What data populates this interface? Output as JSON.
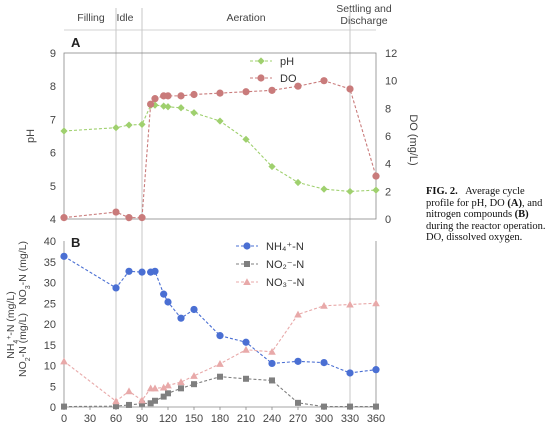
{
  "phases": [
    "Filling",
    "Idle",
    "Aeration",
    "Settling and\nDischarge"
  ],
  "phase_boundaries": [
    60,
    90,
    330
  ],
  "caption": {
    "fig": "FIG. 2.",
    "text1": "Average cycle profile for pH, DO ",
    "a": "(A)",
    "text2": ", and nitrogen compounds ",
    "b": "(B)",
    "text3": " during the reactor operation. DO, dissolved oxygen."
  },
  "colors": {
    "ph": "#9fd06e",
    "do": "#c97b7b",
    "nh4": "#4a6fd3",
    "no2": "#7f7f7f",
    "no3": "#e8a9a9"
  },
  "chart_data": [
    {
      "panel": "A",
      "type": "line",
      "x": [
        0,
        60,
        75,
        90,
        100,
        105,
        115,
        120,
        135,
        150,
        180,
        210,
        240,
        270,
        300,
        330,
        360
      ],
      "xlim": [
        0,
        360
      ],
      "ylim_left": [
        4,
        9
      ],
      "ylim_right": [
        0,
        12
      ],
      "ylabel_left": "pH",
      "ylabel_right": "DO (mg/L)",
      "series": [
        {
          "name": "pH",
          "axis": "left",
          "marker": "diamond",
          "values": [
            6.65,
            6.75,
            6.83,
            6.85,
            7.42,
            7.43,
            7.4,
            7.38,
            7.35,
            7.2,
            6.95,
            6.4,
            5.58,
            5.1,
            4.9,
            4.83,
            4.87
          ]
        },
        {
          "name": "DO",
          "axis": "right",
          "marker": "circle",
          "values": [
            0.1,
            0.5,
            0.1,
            0.1,
            8.3,
            8.7,
            8.9,
            8.9,
            8.9,
            9.0,
            9.1,
            9.2,
            9.3,
            9.6,
            10.0,
            9.4,
            3.1
          ]
        }
      ],
      "yticks_left": [
        "4",
        "5",
        "6",
        "7",
        "8",
        "9"
      ],
      "yticks_right": [
        "0",
        "2",
        "4",
        "6",
        "8",
        "10",
        "12"
      ]
    },
    {
      "panel": "B",
      "type": "line",
      "x": [
        0,
        60,
        75,
        90,
        100,
        105,
        115,
        120,
        135,
        150,
        180,
        210,
        240,
        270,
        300,
        330,
        360
      ],
      "xlim": [
        0,
        360
      ],
      "ylim": [
        0,
        40
      ],
      "ylabel": "NH4+-N (mg/L) NO2-N (mg/L) NO3-N (mg/L)",
      "series": [
        {
          "name": "NH₄⁺-N",
          "marker": "circle",
          "values": [
            36.3,
            28.7,
            32.7,
            32.5,
            32.5,
            32.7,
            27.2,
            25.3,
            21.4,
            23.5,
            17.2,
            15.6,
            10.5,
            11.0,
            10.7,
            8.2,
            9.0
          ]
        },
        {
          "name": "NO₂⁻-N",
          "marker": "square",
          "values": [
            0.1,
            0.2,
            0.5,
            0.8,
            0.9,
            1.5,
            2.5,
            3.3,
            4.5,
            5.5,
            7.3,
            6.8,
            6.4,
            1.0,
            0.1,
            0.1,
            0.1
          ]
        },
        {
          "name": "NO₃⁻-N",
          "marker": "triangle",
          "values": [
            11.0,
            1.4,
            3.8,
            1.6,
            4.5,
            4.5,
            4.7,
            5.2,
            6.0,
            7.5,
            10.4,
            13.8,
            13.3,
            22.3,
            24.4,
            24.7,
            25.0
          ]
        }
      ],
      "yticks": [
        "0",
        "5",
        "10",
        "15",
        "20",
        "25",
        "30",
        "35",
        "40"
      ],
      "xticks": [
        "0",
        "30",
        "60",
        "90",
        "120",
        "150",
        "180",
        "210",
        "240",
        "270",
        "300",
        "330",
        "360"
      ]
    }
  ]
}
